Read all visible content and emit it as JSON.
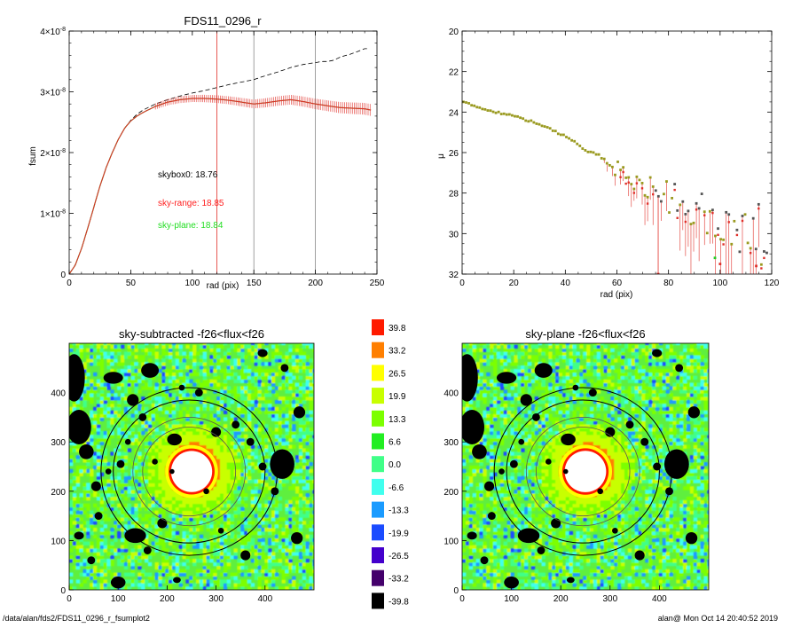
{
  "chart_data": [
    {
      "type": "line",
      "title": "FDS11_0296_r",
      "xlabel": "rad (pix)",
      "ylabel": "fsum",
      "xlim": [
        0,
        250
      ],
      "ylim": [
        0,
        4e-08
      ],
      "xticks": [
        "0",
        "50",
        "100",
        "150",
        "200",
        "250"
      ],
      "yticks": [
        {
          "base": "0",
          "exp": ""
        },
        {
          "base": "1×10",
          "exp": "-8"
        },
        {
          "base": "2×10",
          "exp": "-8"
        },
        {
          "base": "3×10",
          "exp": "-8"
        },
        {
          "base": "4×10",
          "exp": "-8"
        }
      ],
      "vlines": [
        {
          "x": 120,
          "color": "#e0302a"
        },
        {
          "x": 150,
          "color": "#888888"
        },
        {
          "x": 200,
          "color": "#888888"
        }
      ],
      "annotations": [
        {
          "text": "skybox0: 18.76",
          "color": "#000000"
        },
        {
          "text": "sky-range: 18.85",
          "color": "#ff2020"
        },
        {
          "text": "sky-plane: 18.84",
          "color": "#22dd22"
        }
      ],
      "series": [
        {
          "style": "dashed",
          "color": "#000000",
          "x": [
            0,
            5,
            10,
            15,
            20,
            25,
            30,
            35,
            40,
            45,
            50,
            55,
            60,
            70,
            80,
            90,
            100,
            110,
            120,
            130,
            140,
            150,
            160,
            170,
            180,
            190,
            200,
            205,
            210,
            215,
            220,
            230,
            240,
            245
          ],
          "y": [
            0,
            0.15,
            0.42,
            0.75,
            1.1,
            1.45,
            1.75,
            2.0,
            2.22,
            2.4,
            2.53,
            2.63,
            2.7,
            2.8,
            2.87,
            2.93,
            2.98,
            3.02,
            3.07,
            3.12,
            3.16,
            3.2,
            3.27,
            3.33,
            3.4,
            3.45,
            3.48,
            3.5,
            3.5,
            3.52,
            3.57,
            3.63,
            3.71,
            3.71
          ]
        },
        {
          "style": "errorbar",
          "color": "#e0302a",
          "x": [
            0,
            5,
            10,
            15,
            20,
            25,
            30,
            35,
            40,
            45,
            50,
            55,
            60,
            70,
            80,
            90,
            100,
            110,
            120,
            130,
            140,
            150,
            160,
            170,
            180,
            190,
            200,
            210,
            220,
            230,
            240,
            245
          ],
          "y": [
            0,
            0.15,
            0.42,
            0.75,
            1.1,
            1.45,
            1.75,
            2.0,
            2.22,
            2.4,
            2.52,
            2.6,
            2.66,
            2.76,
            2.83,
            2.87,
            2.89,
            2.89,
            2.88,
            2.86,
            2.83,
            2.8,
            2.82,
            2.85,
            2.87,
            2.84,
            2.8,
            2.77,
            2.74,
            2.73,
            2.72,
            2.7
          ]
        }
      ]
    },
    {
      "type": "scatter",
      "title": "",
      "xlabel": "rad (pix)",
      "ylabel": "μ",
      "xlim": [
        0,
        120
      ],
      "ylim": [
        32,
        20
      ],
      "xticks": [
        "0",
        "20",
        "40",
        "60",
        "80",
        "100",
        "120"
      ],
      "yticks": [
        "20",
        "22",
        "24",
        "26",
        "28",
        "30",
        "32"
      ],
      "trend": {
        "x": [
          0,
          10,
          20,
          30,
          40,
          50,
          60,
          70,
          80,
          90,
          100,
          110,
          118
        ],
        "y": [
          23.5,
          23.9,
          24.2,
          24.6,
          25.2,
          26.0,
          26.8,
          27.6,
          28.2,
          28.8,
          29.3,
          29.8,
          30.2
        ]
      },
      "marker_colors": [
        "#9a9a20",
        "#e0302a",
        "#555555",
        "#22cc22"
      ],
      "outliers": [
        {
          "x": 76,
          "y": 32,
          "color": "#e0302a"
        },
        {
          "x": 100,
          "y": 31.5,
          "color": "#e0302a"
        },
        {
          "x": 114,
          "y": 31.6,
          "color": "#e0302a"
        },
        {
          "x": 98,
          "y": 31.2,
          "color": "#22cc22"
        }
      ]
    },
    {
      "type": "heatmap",
      "title": "sky-subtracted -f26<flux<f26",
      "xlim": [
        0,
        500
      ],
      "ylim": [
        0,
        500
      ],
      "xticks": [
        "0",
        "100",
        "200",
        "300",
        "400"
      ],
      "yticks": [
        "0",
        "100",
        "200",
        "300",
        "400"
      ],
      "center": [
        250,
        240
      ],
      "ellipses": [
        [
          245,
          240,
          180,
          170
        ],
        [
          245,
          240,
          155,
          145
        ],
        [
          245,
          240,
          115,
          110
        ],
        [
          245,
          240,
          95,
          90
        ]
      ],
      "hot_core_radius": 42
    },
    {
      "type": "heatmap",
      "title": "sky-plane -f26<flux<f26",
      "xlim": [
        0,
        500
      ],
      "ylim": [
        0,
        500
      ],
      "xticks": [
        "0",
        "100",
        "200",
        "300",
        "400"
      ],
      "yticks": [
        "0",
        "100",
        "200",
        "300",
        "400"
      ],
      "center": [
        250,
        240
      ],
      "ellipses": [
        [
          245,
          240,
          180,
          170
        ],
        [
          245,
          240,
          155,
          145
        ],
        [
          245,
          240,
          115,
          110
        ],
        [
          245,
          240,
          95,
          90
        ]
      ],
      "hot_core_radius": 42
    }
  ],
  "colorbar": {
    "labels": [
      "39.8",
      "33.2",
      "26.5",
      "19.9",
      "13.3",
      "6.6",
      "0.0",
      "-6.6",
      "-13.3",
      "-19.9",
      "-26.5",
      "-33.2",
      "-39.8"
    ],
    "colors": [
      "#ff1a00",
      "#ff7f00",
      "#ffff00",
      "#c8ff00",
      "#7cff00",
      "#22ee22",
      "#40ff88",
      "#40ffee",
      "#1a9bff",
      "#1a4bff",
      "#4400cc",
      "#44006b",
      "#000000"
    ]
  },
  "footer": {
    "left": "/data/alan/fds2/FDS11_0296_r_fsumplot2",
    "right": "alan@   Mon Oct 14 20:40:52 2019"
  }
}
